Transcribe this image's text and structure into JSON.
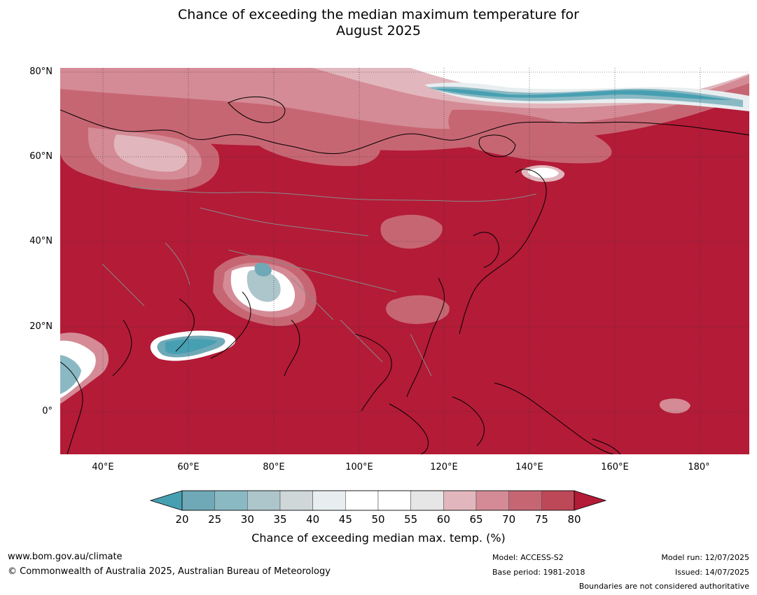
{
  "title": {
    "line1": "Chance of exceeding the median maximum temperature for",
    "line2": "August 2025"
  },
  "map": {
    "background_color": "#b31b37",
    "lat_labels": [
      "80°N",
      "60°N",
      "40°N",
      "20°N",
      "0°"
    ],
    "lat_values": [
      80,
      60,
      40,
      20,
      0
    ],
    "lon_labels": [
      "40°E",
      "60°E",
      "80°E",
      "100°E",
      "120°E",
      "140°E",
      "160°E",
      "180°"
    ],
    "lon_values": [
      40,
      60,
      80,
      100,
      120,
      140,
      160,
      180
    ],
    "lon_range": [
      30,
      191.5
    ],
    "lat_range": [
      -10,
      81
    ]
  },
  "colorbar": {
    "ticks": [
      "20",
      "25",
      "30",
      "35",
      "40",
      "45",
      "50",
      "55",
      "60",
      "65",
      "70",
      "75",
      "80"
    ],
    "colors": [
      "#6fa9b7",
      "#8ab9c4",
      "#adc6cb",
      "#cfd7d9",
      "#e8eef0",
      "#ffffff",
      "#ffffff",
      "#e6e6e6",
      "#e1b7bd",
      "#d48b96",
      "#c76673",
      "#bd4857"
    ],
    "low_extend_color": "#47a0b2",
    "high_extend_color": "#b31b37",
    "label": "Chance of exceeding median max. temp. (%)"
  },
  "footer": {
    "website": "www.bom.gov.au/climate",
    "copyright": "© Commonwealth of Australia 2025, Australian Bureau of Meteorology",
    "model": "Model: ACCESS-S2",
    "base_period": "Base period: 1981-2018",
    "model_run": "Model run: 12/07/2025",
    "issued": "Issued: 14/07/2025",
    "disclaimer": "Boundaries are not considered authoritative"
  }
}
